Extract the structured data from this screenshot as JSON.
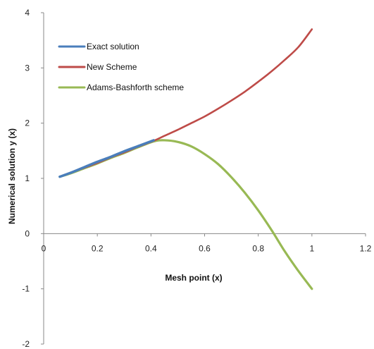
{
  "chart_data": {
    "type": "line",
    "title": "",
    "xlabel": "Mesh point (x)",
    "ylabel": "Numerical solution y (x)",
    "xlim": [
      0,
      1.2
    ],
    "ylim": [
      -2,
      4
    ],
    "xticks": [
      "0",
      "0.2",
      "0.4",
      "0.6",
      "0.8",
      "1",
      "1.2"
    ],
    "yticks": [
      "-2",
      "-1",
      "0",
      "1",
      "2",
      "3",
      "4"
    ],
    "grid": false,
    "legend_position": "top-left",
    "series": [
      {
        "name": "Exact solution",
        "color": "#4a7ebb",
        "x": [
          0.06,
          0.1,
          0.15,
          0.2,
          0.25,
          0.3,
          0.35,
          0.41
        ],
        "y": [
          1.03,
          1.1,
          1.2,
          1.3,
          1.39,
          1.49,
          1.58,
          1.69
        ]
      },
      {
        "name": "New Scheme",
        "color": "#be4b48",
        "x": [
          0.06,
          0.1,
          0.15,
          0.2,
          0.25,
          0.3,
          0.35,
          0.41,
          0.45,
          0.5,
          0.55,
          0.6,
          0.65,
          0.7,
          0.75,
          0.8,
          0.85,
          0.9,
          0.95,
          1.0
        ],
        "y": [
          1.03,
          1.1,
          1.19,
          1.28,
          1.38,
          1.47,
          1.57,
          1.68,
          1.77,
          1.88,
          2.0,
          2.12,
          2.26,
          2.41,
          2.57,
          2.75,
          2.94,
          3.15,
          3.38,
          3.7
        ]
      },
      {
        "name": "Adams-Bashforth scheme",
        "color": "#98b954",
        "x": [
          0.06,
          0.1,
          0.15,
          0.2,
          0.25,
          0.3,
          0.35,
          0.41,
          0.45,
          0.5,
          0.55,
          0.6,
          0.65,
          0.7,
          0.75,
          0.8,
          0.85,
          0.9,
          0.95,
          1.0
        ],
        "y": [
          1.03,
          1.09,
          1.18,
          1.27,
          1.37,
          1.46,
          1.56,
          1.67,
          1.69,
          1.66,
          1.58,
          1.44,
          1.26,
          1.02,
          0.74,
          0.42,
          0.06,
          -0.33,
          -0.68,
          -1.0
        ]
      }
    ]
  }
}
